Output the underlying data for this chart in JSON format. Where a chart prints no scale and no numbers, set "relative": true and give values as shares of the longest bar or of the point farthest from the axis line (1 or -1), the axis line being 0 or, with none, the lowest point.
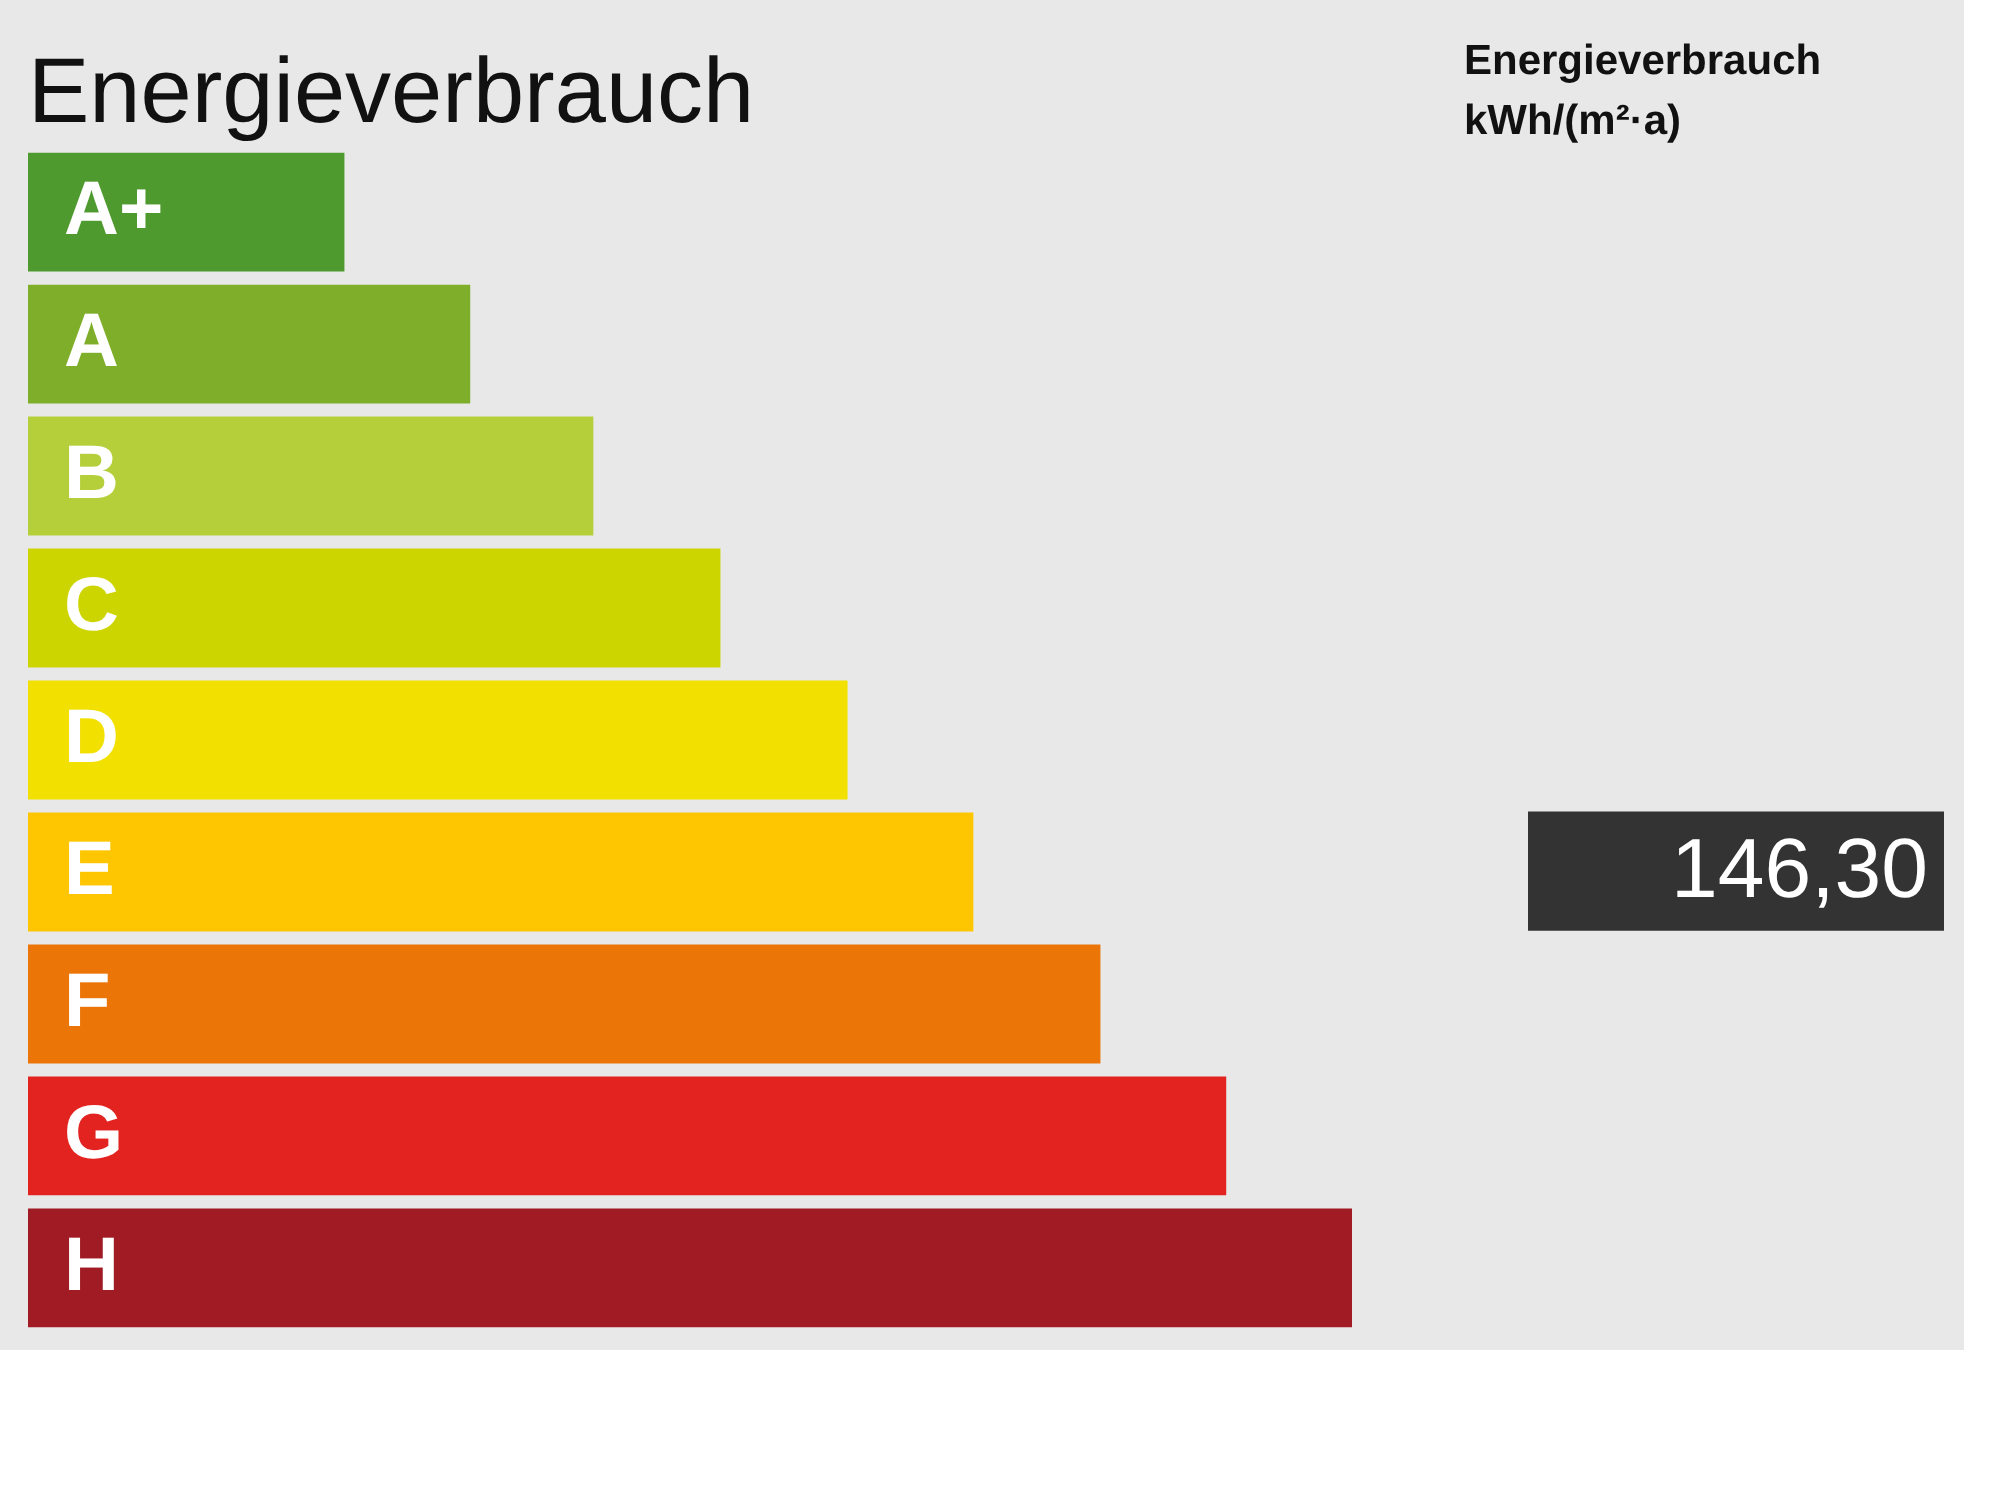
{
  "chart_data": {
    "type": "bar",
    "orientation": "horizontal",
    "relative": true,
    "title": "Energieverbrauch",
    "categories": [
      "A+",
      "A",
      "B",
      "C",
      "D",
      "E",
      "F",
      "G",
      "H"
    ],
    "values": [
      0.239,
      0.334,
      0.427,
      0.523,
      0.619,
      0.714,
      0.81,
      0.905,
      1
    ],
    "colors": [
      "#4f9a2e",
      "#7fae2a",
      "#b5cf3a",
      "#cdd500",
      "#f1e000",
      "#fdc600",
      "#ec7508",
      "#e32320",
      "#a01b24"
    ],
    "annotations": [
      "Energieverbrauch\nkWh/(m²·a)",
      "146,30"
    ]
  }
}
